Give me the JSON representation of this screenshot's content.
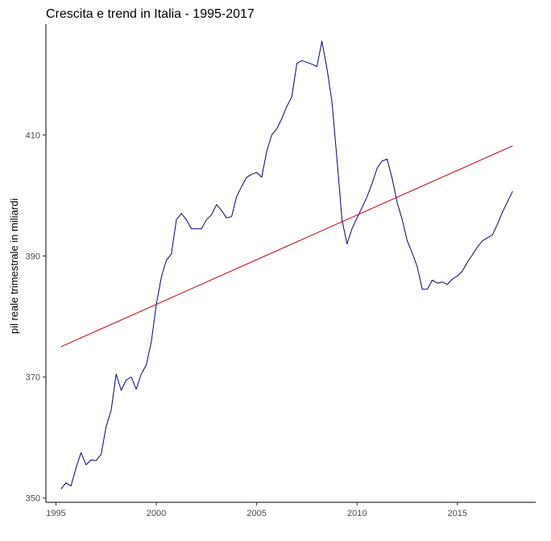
{
  "chart_data": {
    "type": "line",
    "title": "Crescita e trend in Italia - 1995-2017",
    "xlabel": "",
    "ylabel": "pil reale trimestrale in miliardi",
    "xlim": [
      1994.5,
      2018.9
    ],
    "ylim": [
      349.3,
      428.3
    ],
    "x_ticks": [
      1995,
      2000,
      2005,
      2010,
      2015
    ],
    "y_ticks": [
      350,
      370,
      390,
      410
    ],
    "grid": false,
    "legend": "none",
    "series": [
      {
        "role": "actual",
        "color": "#00008b",
        "x": [
          1995.25,
          1995.5,
          1995.75,
          1996.0,
          1996.25,
          1996.5,
          1996.75,
          1997.0,
          1997.25,
          1997.5,
          1997.75,
          1998.0,
          1998.25,
          1998.5,
          1998.75,
          1999.0,
          1999.25,
          1999.5,
          1999.75,
          2000.0,
          2000.25,
          2000.5,
          2000.75,
          2001.0,
          2001.25,
          2001.5,
          2001.75,
          2002.0,
          2002.25,
          2002.5,
          2002.75,
          2003.0,
          2003.25,
          2003.5,
          2003.75,
          2004.0,
          2004.25,
          2004.5,
          2004.75,
          2005.0,
          2005.25,
          2005.5,
          2005.75,
          2006.0,
          2006.25,
          2006.5,
          2006.75,
          2007.0,
          2007.25,
          2007.5,
          2007.75,
          2008.0,
          2008.25,
          2008.5,
          2008.75,
          2009.0,
          2009.25,
          2009.5,
          2009.75,
          2010.0,
          2010.25,
          2010.5,
          2010.75,
          2011.0,
          2011.25,
          2011.5,
          2011.75,
          2012.0,
          2012.25,
          2012.5,
          2012.75,
          2013.0,
          2013.25,
          2013.5,
          2013.75,
          2014.0,
          2014.25,
          2014.5,
          2014.75,
          2015.0,
          2015.25,
          2015.5,
          2015.75,
          2016.0,
          2016.25,
          2016.5,
          2016.75,
          2017.0,
          2017.25,
          2017.5,
          2017.75
        ],
        "values": [
          351.5,
          352.5,
          352.0,
          355.0,
          357.5,
          355.5,
          356.3,
          356.2,
          357.2,
          361.8,
          364.5,
          370.5,
          367.8,
          369.5,
          370.0,
          368.0,
          370.5,
          372.0,
          375.8,
          382.0,
          386.5,
          389.3,
          390.3,
          396.0,
          397.0,
          396.0,
          394.5,
          394.5,
          394.5,
          396.0,
          396.8,
          398.5,
          397.5,
          396.3,
          396.5,
          399.8,
          401.5,
          403.0,
          403.5,
          403.8,
          403.0,
          407.3,
          410.0,
          411.0,
          412.7,
          414.7,
          416.3,
          421.8,
          422.3,
          422.0,
          421.7,
          421.3,
          425.5,
          421.0,
          415.5,
          406.0,
          396.0,
          392.0,
          394.5,
          396.3,
          398.0,
          399.8,
          402.0,
          404.5,
          405.7,
          406.0,
          402.8,
          398.8,
          396.0,
          392.5,
          390.5,
          388.2,
          384.5,
          384.5,
          386.0,
          385.5,
          385.7,
          385.3,
          386.2,
          386.7,
          387.5,
          389.0,
          390.2,
          391.5,
          392.5,
          393.0,
          393.5,
          395.3,
          397.3,
          399.0,
          400.7
        ]
      },
      {
        "role": "trend",
        "color": "#cc0000",
        "x": [
          1995.25,
          2017.75
        ],
        "values": [
          375.0,
          408.2
        ]
      }
    ]
  }
}
